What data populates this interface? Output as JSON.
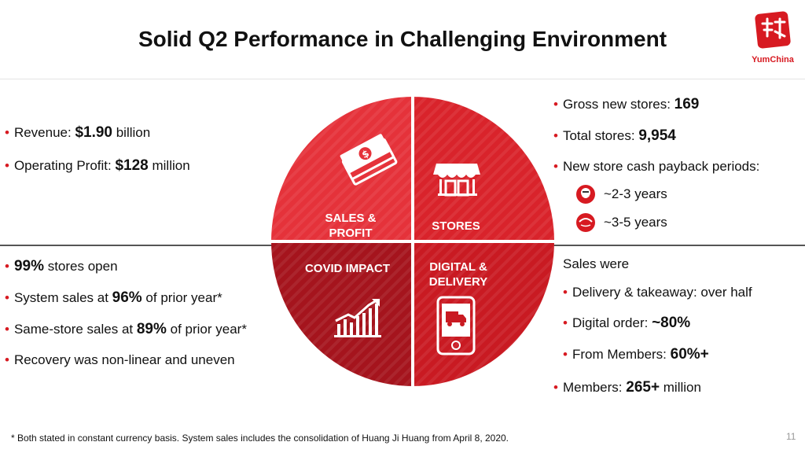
{
  "slide": {
    "title": "Solid Q2 Performance in Challenging Environment",
    "logo_text": "YumChina",
    "footnote": "* Both stated in constant currency basis. System sales includes the consolidation of Huang Ji Huang from April 8, 2020.",
    "page_number": "11"
  },
  "quadrants": {
    "sales": {
      "label_1": "SALES &",
      "label_2": "PROFIT"
    },
    "stores": {
      "label": "STORES"
    },
    "covid": {
      "label": "COVID IMPACT"
    },
    "digital": {
      "label_1": "DIGITAL &",
      "label_2": "DELIVERY"
    }
  },
  "sales_profit": [
    {
      "pre": "Revenue: ",
      "value": "$1.90",
      "post": " billion"
    },
    {
      "pre": "Operating Profit: ",
      "value": "$128",
      "post": " million"
    }
  ],
  "stores": {
    "items": [
      {
        "pre": "Gross new stores: ",
        "value": "169"
      },
      {
        "pre": "Total stores: ",
        "value": "9,954"
      },
      {
        "pre": "New store cash payback periods:",
        "value": ""
      }
    ],
    "kfc_payback": "~2-3 years",
    "pizzahut_payback": "~3-5 years"
  },
  "covid": [
    {
      "value": "99%",
      "post": " stores open",
      "pre": ""
    },
    {
      "pre": "System sales at ",
      "value": "96%",
      "post": " of prior year*"
    },
    {
      "pre": "Same-store sales at ",
      "value": "89%",
      "post": " of prior year*"
    },
    {
      "pre": "Recovery was non-linear and uneven",
      "value": "",
      "post": ""
    }
  ],
  "digital": {
    "intro": "Sales were",
    "items": [
      {
        "pre": "Delivery & takeaway: over half",
        "value": ""
      },
      {
        "pre": "Digital order: ",
        "value": "~80%"
      },
      {
        "pre": "From Members: ",
        "value": "60%+"
      }
    ],
    "members": {
      "pre": "Members: ",
      "value": "265+",
      "post": " million"
    }
  },
  "colors": {
    "accent": "#d71a21",
    "sales_quadrant": "#e5323a",
    "stores_quadrant": "#d9232b",
    "covid_quadrant": "#a5141d",
    "digital_quadrant": "#c91a22"
  }
}
